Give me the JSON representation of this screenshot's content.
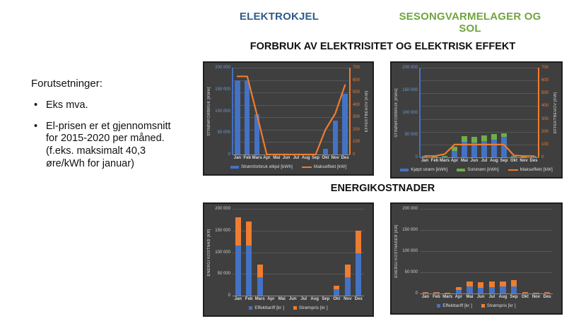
{
  "slide": {
    "column_headers": [
      {
        "label": "ELEKTROKJEL",
        "color": "#2E5B8C"
      },
      {
        "label": "SESONGVARMELAGER OG SOL",
        "color": "#6FA53E"
      }
    ],
    "section_titles": {
      "top": "FORBRUK AV ELEKTRISITET OG ELEKTRISK EFFEKT",
      "bottom": "ENERGIKOSTNADER"
    },
    "notes": {
      "heading": "Forutsetninger:",
      "bullets": [
        "Eks mva.",
        "El-prisen er et gjennomsnitt for 2015-2020 per måned. (f.eks. maksimalt 40,3 øre/kWh for januar)"
      ]
    }
  },
  "colors": {
    "bar_blue": "#4472C4",
    "line_orange": "#ED7D31",
    "bar_green": "#70AD47",
    "chart_background": "#3F3F3F"
  },
  "chart_data": [
    {
      "id": "elkjel-forbruk",
      "type": "bar+line",
      "categories": [
        "Jan",
        "Feb",
        "Mars",
        "Apr",
        "Mai",
        "Jun",
        "Jul",
        "Aug",
        "Sep",
        "Okt",
        "Nov",
        "Des"
      ],
      "left_axis": {
        "label": "STRØMFORBRUK [KWH]",
        "max": 200000,
        "ticks": [
          "0",
          "50 000",
          "100 000",
          "150 000",
          "200 000"
        ],
        "color": "#6D9DD8",
        "line_color": "#4472C4"
      },
      "right_axis": {
        "label": "EFFEKTBEHOV [KW]",
        "max": 700,
        "ticks": [
          "0",
          "100",
          "200",
          "300",
          "400",
          "500",
          "600",
          "700"
        ],
        "color": "#ED7D31",
        "line_color": "#ED7D31"
      },
      "series": [
        {
          "name": "Strømforbruk elkjel [kWh]",
          "type": "bar",
          "color": "#4472C4",
          "values": [
            170000,
            170000,
            92000,
            0,
            0,
            0,
            0,
            0,
            0,
            13000,
            78000,
            140000
          ]
        },
        {
          "name": "Makseffekt [kW]",
          "type": "line",
          "color": "#ED7D31",
          "values": [
            630,
            630,
            320,
            0,
            0,
            0,
            0,
            0,
            0,
            200,
            330,
            560
          ]
        }
      ],
      "legend": [
        {
          "label": "Strømforbruk elkjel [kWh]",
          "color": "#4472C4",
          "swatch": "bar"
        },
        {
          "label": "Makseffekt [kW]",
          "color": "#ED7D31",
          "swatch": "line"
        }
      ]
    },
    {
      "id": "sesong-forbruk",
      "type": "bar+line",
      "categories": [
        "Jan",
        "Feb",
        "Mars",
        "Apr",
        "Mai",
        "Jun",
        "Jul",
        "Aug",
        "Sep",
        "Okt",
        "Nov",
        "Des"
      ],
      "left_axis": {
        "label": "STRØMFORBRUK [KWH]",
        "max": 200000,
        "ticks": [
          "0",
          "50 000",
          "100 000",
          "150 000",
          "200 000"
        ],
        "color": "#6D9DD8",
        "line_color": "#4472C4"
      },
      "right_axis": {
        "label": "EFFEKTBEHOV [KW]",
        "max": 700,
        "ticks": [
          "0",
          "100",
          "200",
          "300",
          "400",
          "500",
          "600",
          "700"
        ],
        "color": "#ED7D31",
        "line_color": "#ED7D31"
      },
      "series": [
        {
          "name": "Kjøpt strøm [kWh]",
          "type": "bar",
          "color": "#4472C4",
          "values": [
            2000,
            1000,
            2000,
            14000,
            35000,
            33000,
            36000,
            40000,
            45000,
            2000,
            1000,
            2000
          ]
        },
        {
          "name": "Solstrøm [kWh]",
          "type": "bar",
          "color": "#70AD47",
          "values": [
            500,
            500,
            1500,
            9000,
            13000,
            13000,
            13000,
            12000,
            8000,
            1500,
            500,
            500
          ]
        },
        {
          "name": "Makseffekt [kW]",
          "type": "line",
          "color": "#ED7D31",
          "values": [
            10,
            10,
            25,
            100,
            100,
            100,
            100,
            100,
            100,
            15,
            10,
            10
          ]
        }
      ],
      "legend": [
        {
          "label": "Kjøpt strøm [kWh]",
          "color": "#4472C4",
          "swatch": "bar"
        },
        {
          "label": "Solstrøm [kWh]",
          "color": "#70AD47",
          "swatch": "bar"
        },
        {
          "label": "Makseffekt [kW]",
          "color": "#ED7D31",
          "swatch": "line"
        }
      ]
    },
    {
      "id": "elkjel-kostnad",
      "type": "bar",
      "categories": [
        "Jan",
        "Feb",
        "Mars",
        "Apr",
        "Mai",
        "Jun",
        "Jul",
        "Aug",
        "Sep",
        "Okt",
        "Nov",
        "Des"
      ],
      "left_axis": {
        "label": "ENERGI KOSTNAD [KR]",
        "max": 200000,
        "ticks": [
          "0",
          "50 000",
          "100 000",
          "150 000",
          "200 000"
        ],
        "color": "#cfcfcf",
        "line_color": null
      },
      "right_axis": null,
      "series": [
        {
          "name": "Effekttariff [kr ]",
          "type": "bar",
          "color": "#4472C4",
          "values": [
            115000,
            115000,
            42000,
            0,
            0,
            0,
            0,
            0,
            0,
            15000,
            42000,
            98000
          ]
        },
        {
          "name": "Strømpris [kr ]",
          "type": "bar",
          "color": "#ED7D31",
          "values": [
            65000,
            55000,
            30000,
            0,
            0,
            0,
            0,
            0,
            0,
            7000,
            29000,
            52000
          ]
        }
      ],
      "legend": [
        {
          "label": "Effekttariff [kr ]",
          "color": "#4472C4",
          "swatch": "square"
        },
        {
          "label": "Strømpris [kr ]",
          "color": "#ED7D31",
          "swatch": "square"
        }
      ]
    },
    {
      "id": "sesong-kostnad",
      "type": "bar",
      "categories": [
        "Jan",
        "Feb",
        "Mars",
        "Apr",
        "Mai",
        "Jun",
        "Jul",
        "Aug",
        "Sep",
        "Okt",
        "Nov",
        "Des"
      ],
      "left_axis": {
        "label": "ENERGI KOSTNADER [KR]",
        "max": 200000,
        "ticks": [
          "0",
          "50 000",
          "100 000",
          "150 000",
          "200 000"
        ],
        "color": "#cfcfcf",
        "line_color": null
      },
      "right_axis": null,
      "series": [
        {
          "name": "Effekttariff [kr ]",
          "type": "bar",
          "color": "#4472C4",
          "values": [
            1500,
            1800,
            1200,
            8000,
            16000,
            14000,
            15000,
            16000,
            17000,
            1300,
            1100,
            1500
          ]
        },
        {
          "name": "Strømpris [kr ]",
          "type": "bar",
          "color": "#ED7D31",
          "values": [
            1800,
            2000,
            1200,
            7000,
            12000,
            12000,
            13000,
            13000,
            14000,
            1400,
            1000,
            1700
          ]
        }
      ],
      "legend": [
        {
          "label": "Effekttariff [kr ]",
          "color": "#4472C4",
          "swatch": "square"
        },
        {
          "label": "Strømpris [kr ]",
          "color": "#ED7D31",
          "swatch": "square"
        }
      ]
    }
  ]
}
